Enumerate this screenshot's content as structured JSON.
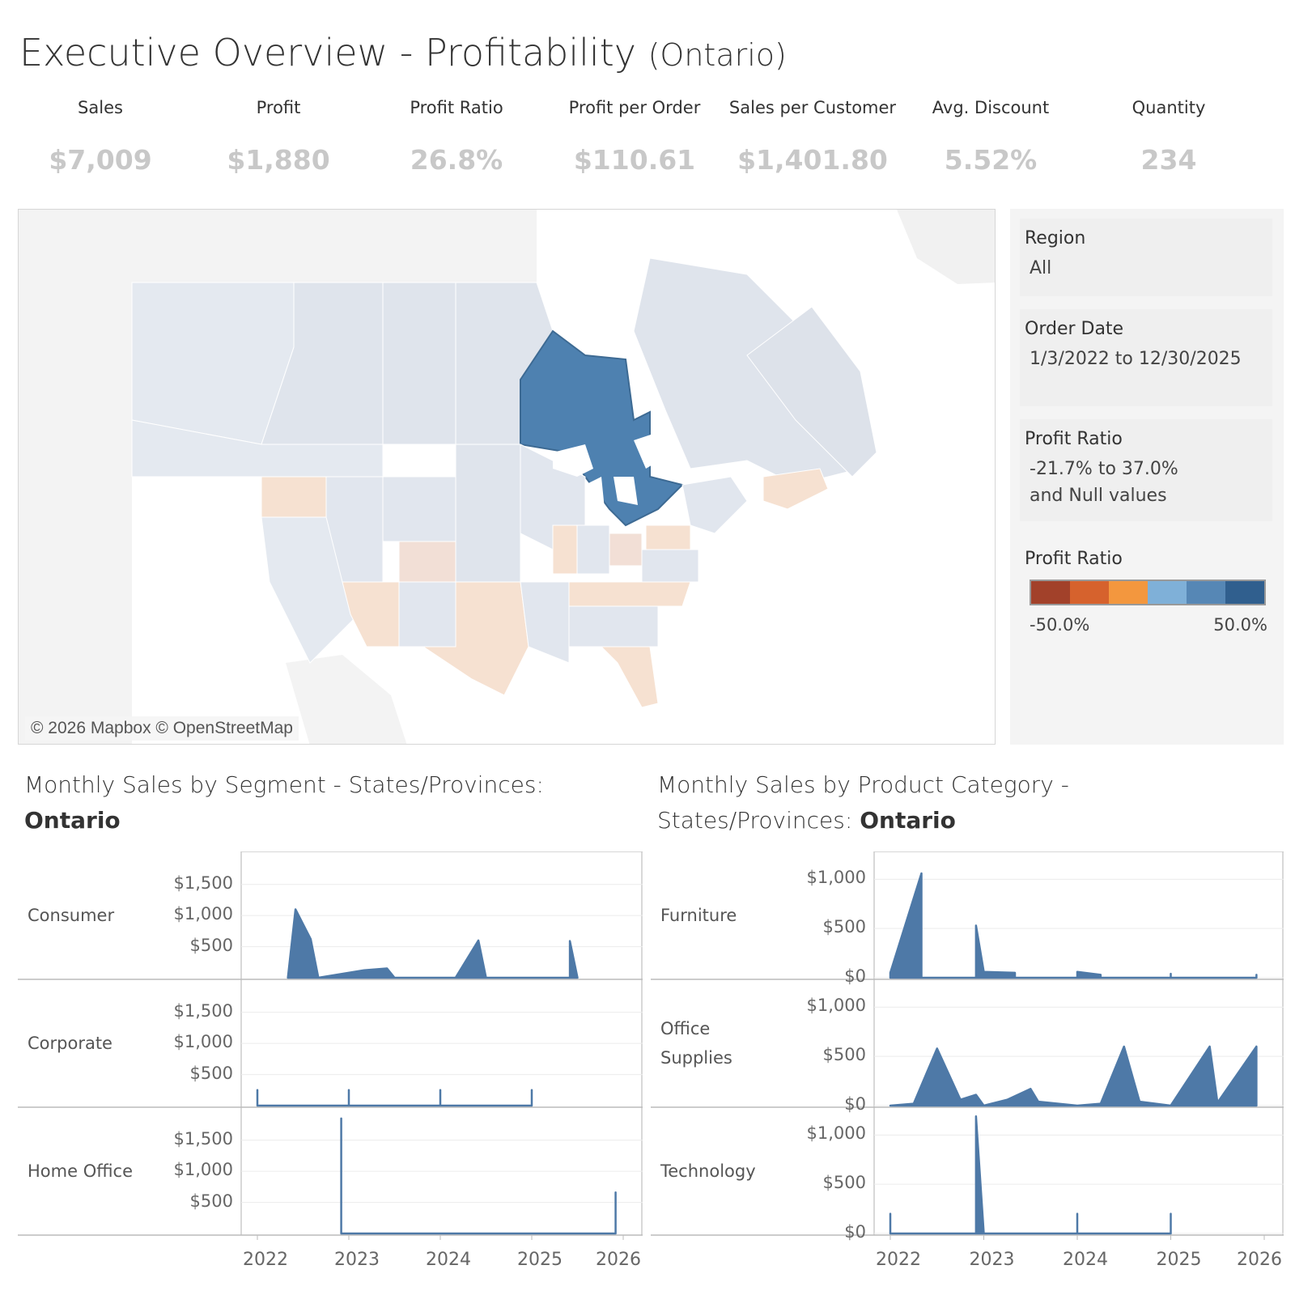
{
  "header": {
    "title": "Executive Overview - Profitability",
    "subtitle": "(Ontario)"
  },
  "kpis": [
    {
      "label": "Sales",
      "value": "$7,009"
    },
    {
      "label": "Profit",
      "value": "$1,880"
    },
    {
      "label": "Profit Ratio",
      "value": "26.8%"
    },
    {
      "label": "Profit per Order",
      "value": "$110.61"
    },
    {
      "label": "Sales per Customer",
      "value": "$1,401.80"
    },
    {
      "label": "Avg. Discount",
      "value": "5.52%"
    },
    {
      "label": "Quantity",
      "value": "234"
    }
  ],
  "map": {
    "attribution": "© 2026 Mapbox © OpenStreetMap",
    "selected_region": "Ontario",
    "colors": {
      "selected": "#4e81b0",
      "neutral": "#dfe4ec",
      "negative": "#f6e1d1",
      "water": "#ffffff",
      "land": "#f2f2f2"
    }
  },
  "filters": {
    "region": {
      "label": "Region",
      "value": "All"
    },
    "order_date": {
      "label": "Order Date",
      "value": "1/3/2022 to 12/30/2025"
    },
    "profit_ratio": {
      "label": "Profit Ratio",
      "value_line1": "-21.7% to 37.0%",
      "value_line2": "and Null values"
    }
  },
  "legend": {
    "title": "Profit Ratio",
    "min": "-50.0%",
    "max": "50.0%",
    "colors": [
      "#a2412a",
      "#d6622d",
      "#f3973e",
      "#7fb0d8",
      "#5687b5",
      "#305f8e"
    ]
  },
  "segment_section": {
    "title_prefix": "Monthly Sales by Segment - States/Provinces:",
    "title_bold": "Ontario"
  },
  "category_section": {
    "title_line1": "Monthly Sales by Product Category -",
    "title_prefix": "States/Provinces:",
    "title_bold": "Ontario"
  },
  "chart_data": [
    {
      "type": "area",
      "title": "Monthly Sales by Segment - States/Provinces: Ontario",
      "x_ticks": [
        "2022",
        "2023",
        "2024",
        "2025",
        "2026"
      ],
      "y_ticks": [
        "$500",
        "$1,000",
        "$1,500"
      ],
      "ylim": [
        0,
        1900
      ],
      "color": "#4e79a7",
      "series": [
        {
          "name": "Consumer",
          "points": [
            [
              "2022-05",
              0
            ],
            [
              "2022-06",
              1100
            ],
            [
              "2022-08",
              620
            ],
            [
              "2022-09",
              0
            ],
            [
              "2023-03",
              120
            ],
            [
              "2023-06",
              150
            ],
            [
              "2023-07",
              0
            ],
            [
              "2024-03",
              0
            ],
            [
              "2024-06",
              600
            ],
            [
              "2024-07",
              0
            ],
            [
              "2025-06",
              0
            ],
            [
              "2025-06",
              590
            ],
            [
              "2025-07",
              0
            ]
          ]
        },
        {
          "name": "Corporate",
          "points": [
            [
              "2022-01",
              0
            ],
            [
              "2022-01",
              250
            ],
            [
              "2022-01",
              0
            ],
            [
              "2023-01",
              0
            ],
            [
              "2023-01",
              250
            ],
            [
              "2023-01",
              0
            ],
            [
              "2024-01",
              0
            ],
            [
              "2024-01",
              250
            ],
            [
              "2024-01",
              0
            ],
            [
              "2025-01",
              0
            ],
            [
              "2025-01",
              250
            ],
            [
              "2025-01",
              0
            ]
          ]
        },
        {
          "name": "Home Office",
          "points": [
            [
              "2022-12",
              0
            ],
            [
              "2022-12",
              1850
            ],
            [
              "2022-12",
              0
            ],
            [
              "2025-12",
              0
            ],
            [
              "2025-12",
              660
            ],
            [
              "2025-12",
              0
            ]
          ]
        }
      ]
    },
    {
      "type": "area",
      "title": "Monthly Sales by Product Category - States/Provinces: Ontario",
      "x_ticks": [
        "2022",
        "2023",
        "2024",
        "2025",
        "2026"
      ],
      "y_ticks": [
        "$0",
        "$500",
        "$1,000"
      ],
      "ylim": [
        0,
        1200
      ],
      "color": "#4e79a7",
      "series": [
        {
          "name": "Furniture",
          "points": [
            [
              "2022-01",
              0
            ],
            [
              "2022-01",
              50
            ],
            [
              "2022-05",
              1060
            ],
            [
              "2022-05",
              0
            ],
            [
              "2022-12",
              0
            ],
            [
              "2022-12",
              530
            ],
            [
              "2023-01",
              60
            ],
            [
              "2023-05",
              50
            ],
            [
              "2023-05",
              0
            ],
            [
              "2024-01",
              0
            ],
            [
              "2024-01",
              60
            ],
            [
              "2024-04",
              30
            ],
            [
              "2024-04",
              0
            ],
            [
              "2025-01",
              0
            ],
            [
              "2025-01",
              40
            ],
            [
              "2025-01",
              0
            ],
            [
              "2025-12",
              0
            ],
            [
              "2025-12",
              30
            ],
            [
              "2025-12",
              0
            ]
          ]
        },
        {
          "name": "Office Supplies",
          "points": [
            [
              "2022-01",
              0
            ],
            [
              "2022-04",
              20
            ],
            [
              "2022-07",
              580
            ],
            [
              "2022-10",
              60
            ],
            [
              "2022-12",
              110
            ],
            [
              "2023-01",
              0
            ],
            [
              "2023-04",
              60
            ],
            [
              "2023-07",
              170
            ],
            [
              "2023-08",
              40
            ],
            [
              "2024-01",
              0
            ],
            [
              "2024-04",
              20
            ],
            [
              "2024-07",
              600
            ],
            [
              "2024-09",
              40
            ],
            [
              "2025-01",
              0
            ],
            [
              "2025-06",
              600
            ],
            [
              "2025-07",
              30
            ],
            [
              "2025-12",
              600
            ],
            [
              "2025-12",
              0
            ]
          ]
        },
        {
          "name": "Technology",
          "points": [
            [
              "2022-01",
              0
            ],
            [
              "2022-01",
              200
            ],
            [
              "2022-01",
              0
            ],
            [
              "2022-12",
              0
            ],
            [
              "2022-12",
              1190
            ],
            [
              "2023-01",
              0
            ],
            [
              "2024-01",
              0
            ],
            [
              "2024-01",
              200
            ],
            [
              "2024-01",
              0
            ],
            [
              "2025-01",
              0
            ],
            [
              "2025-01",
              200
            ],
            [
              "2025-01",
              0
            ]
          ]
        }
      ]
    }
  ]
}
